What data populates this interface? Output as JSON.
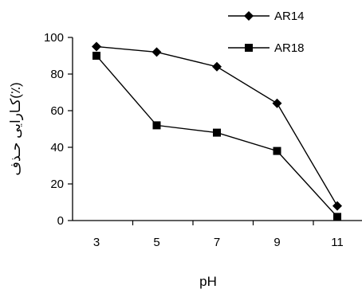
{
  "chart_data": {
    "type": "line",
    "title": "",
    "xlabel": "pH",
    "ylabel": "کـارایی حـذف(٪)",
    "categories": [
      "3",
      "5",
      "7",
      "9",
      "11"
    ],
    "ylim": [
      0,
      100
    ],
    "yticks": [
      "0",
      "20",
      "40",
      "60",
      "80",
      "100"
    ],
    "grid": false,
    "legend_position": "top-right",
    "series": [
      {
        "name": "AR14",
        "marker": "diamond",
        "color": "#000000",
        "values": [
          95,
          92,
          84,
          64,
          8
        ]
      },
      {
        "name": "AR18",
        "marker": "square",
        "color": "#000000",
        "values": [
          90,
          52,
          48,
          38,
          2
        ]
      }
    ]
  }
}
